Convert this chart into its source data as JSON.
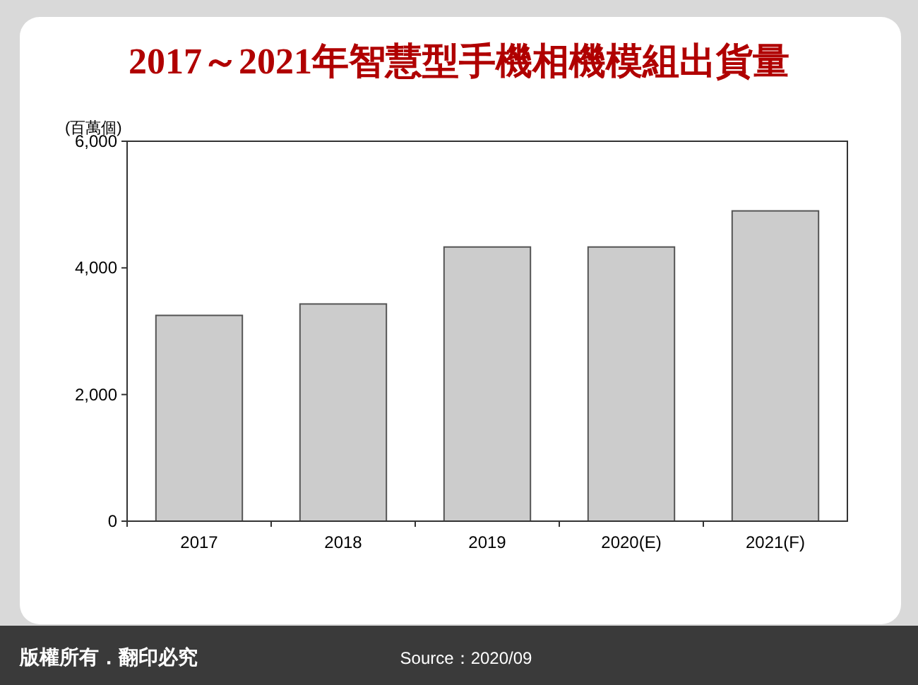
{
  "chart_data": {
    "type": "bar",
    "title": "2017～2021年智慧型手機相機模組出貨量",
    "ylabel": "(百萬個)",
    "categories": [
      "2017",
      "2018",
      "2019",
      "2020(E)",
      "2021(F)"
    ],
    "values": [
      3250,
      3430,
      4330,
      4330,
      4900
    ],
    "color": "#cccccc",
    "ylim": [
      0,
      6000
    ],
    "yticks": [
      0,
      {
        "value": 2000,
        "label": "2,000"
      },
      {
        "value": 4000,
        "label": "4,000"
      },
      {
        "value": 6000,
        "label": "6,000"
      }
    ],
    "grid": false,
    "annotations": [
      "版權所有．翻印必究",
      "Source：2020/09"
    ]
  }
}
